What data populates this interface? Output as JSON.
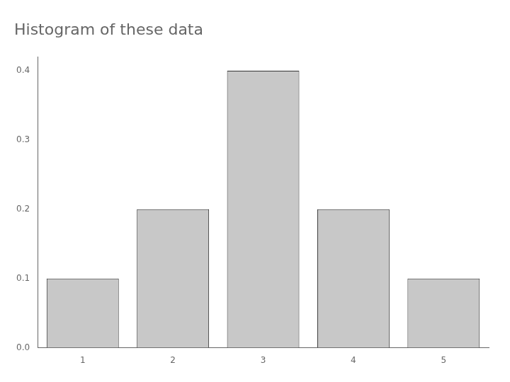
{
  "chart_data": {
    "type": "bar",
    "title": "Histogram of these data",
    "categories": [
      1,
      2,
      3,
      4,
      5
    ],
    "values": [
      0.1,
      0.2,
      0.4,
      0.2,
      0.1
    ],
    "color": "#c8c8c8",
    "ylim": [
      0,
      0.42
    ],
    "yticks": [
      {
        "value": 0.0,
        "label": "0.0"
      },
      0.1,
      0.2,
      0.3,
      0.4
    ],
    "grid": false
  }
}
